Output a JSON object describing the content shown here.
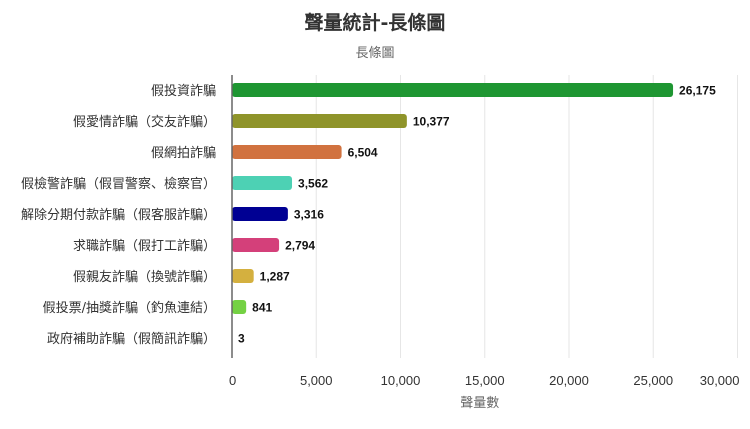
{
  "chart_data": {
    "type": "bar",
    "orientation": "horizontal",
    "title": "聲量統計-長條圖",
    "subtitle": "長條圖",
    "xlabel": "聲量數",
    "ylabel": "",
    "xlim": [
      0,
      30000
    ],
    "xticks": [
      0,
      5000,
      10000,
      15000,
      20000,
      25000,
      30000
    ],
    "xtick_labels": [
      "0",
      "5,000",
      "10,000",
      "15,000",
      "20,000",
      "25,000",
      "30,000"
    ],
    "grid": true,
    "legend": "none",
    "categories": [
      "假投資詐騙",
      "假愛情詐騙（交友詐騙）",
      "假網拍詐騙",
      "假檢警詐騙（假冒警察、檢察官）",
      "解除分期付款詐騙（假客服詐騙）",
      "求職詐騙（假打工詐騙）",
      "假親友詐騙（換號詐騙）",
      "假投票/抽獎詐騙（釣魚連結）",
      "政府補助詐騙（假簡訊詐騙）"
    ],
    "values": [
      26175,
      10377,
      6504,
      3562,
      3316,
      2794,
      1287,
      841,
      3
    ],
    "data_labels": [
      "26,175",
      "10,377",
      "6,504",
      "3,562",
      "3,316",
      "2,794",
      "1,287",
      "841",
      "3"
    ],
    "colors": [
      "#1e9632",
      "#8f942a",
      "#d1723f",
      "#4dd1b4",
      "#000093",
      "#d4407a",
      "#d4b03f",
      "#74d143",
      "#333333"
    ]
  }
}
